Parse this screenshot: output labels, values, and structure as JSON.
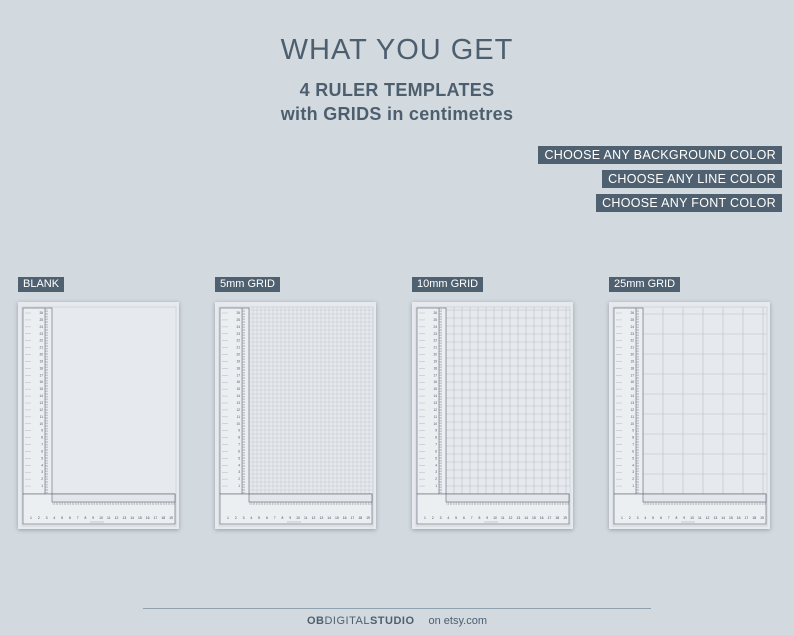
{
  "header": {
    "title": "WHAT YOU GET",
    "subtitle_line1": "4 RULER TEMPLATES",
    "subtitle_line2": "with GRIDS in centimetres"
  },
  "tags": [
    "CHOOSE ANY BACKGROUND COLOR",
    "CHOOSE ANY LINE COLOR",
    "CHOOSE ANY FONT COLOR"
  ],
  "templates": [
    {
      "label": "BLANK",
      "grid_mm": 0
    },
    {
      "label": "5mm GRID",
      "grid_mm": 5
    },
    {
      "label": "10mm GRID",
      "grid_mm": 10
    },
    {
      "label": "25mm GRID",
      "grid_mm": 25
    }
  ],
  "ruler": {
    "vertical_numbers": [
      "26",
      "25",
      "24",
      "23",
      "22",
      "21",
      "20",
      "19",
      "18",
      "17",
      "16",
      "15",
      "14",
      "13",
      "12",
      "11",
      "10",
      "9",
      "8",
      "7",
      "6",
      "5",
      "4",
      "3",
      "2",
      "1"
    ],
    "horizontal_numbers": [
      "1",
      "2",
      "3",
      "4",
      "5",
      "6",
      "7",
      "8",
      "9",
      "10",
      "11",
      "12",
      "13",
      "14",
      "15",
      "16",
      "17",
      "18",
      "19"
    ]
  },
  "footer": {
    "brand_part1": "OB",
    "brand_part2": "DIGITAL",
    "brand_part3": "STUDIO",
    "suffix": "on etsy.com"
  },
  "colors": {
    "background": "#d2d9df",
    "text": "#4d5f6f",
    "tag_bg": "#4f6170",
    "sheet": "#e6e9ed"
  }
}
